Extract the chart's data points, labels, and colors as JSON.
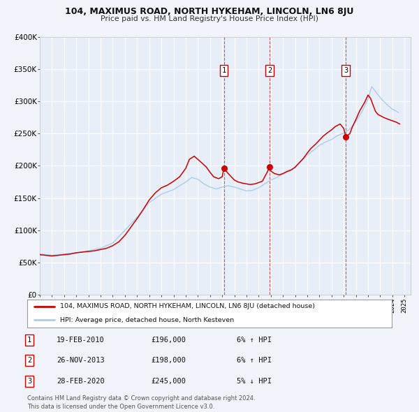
{
  "title": "104, MAXIMUS ROAD, NORTH HYKEHAM, LINCOLN, LN6 8JU",
  "subtitle": "Price paid vs. HM Land Registry's House Price Index (HPI)",
  "legend_label_red": "104, MAXIMUS ROAD, NORTH HYKEHAM, LINCOLN, LN6 8JU (detached house)",
  "legend_label_blue": "HPI: Average price, detached house, North Kesteven",
  "footer_line1": "Contains HM Land Registry data © Crown copyright and database right 2024.",
  "footer_line2": "This data is licensed under the Open Government Licence v3.0.",
  "background_color": "#f0f4fa",
  "plot_bg_color": "#e8eef8",
  "grid_color": "#ffffff",
  "red_color": "#cc0000",
  "blue_color": "#aaccee",
  "sale_years": [
    2010.136,
    2013.899,
    2020.161
  ],
  "sale_prices": [
    196000,
    198000,
    245000
  ],
  "sale_labels": [
    "1",
    "2",
    "3"
  ],
  "table_rows": [
    {
      "num": "1",
      "date": "19-FEB-2010",
      "price": "£196,000",
      "pct": "6% ↑ HPI"
    },
    {
      "num": "2",
      "date": "26-NOV-2013",
      "price": "£198,000",
      "pct": "6% ↑ HPI"
    },
    {
      "num": "3",
      "date": "28-FEB-2020",
      "price": "£245,000",
      "pct": "5% ↓ HPI"
    }
  ],
  "yticks": [
    0,
    50000,
    100000,
    150000,
    200000,
    250000,
    300000,
    350000,
    400000
  ],
  "ytick_labels": [
    "£0",
    "£50K",
    "£100K",
    "£150K",
    "£200K",
    "£250K",
    "£300K",
    "£350K",
    "£400K"
  ],
  "red_x": [
    1995.0,
    1996.0,
    1997.0,
    1997.5,
    1998.0,
    1998.5,
    1999.0,
    1999.5,
    2000.0,
    2000.5,
    2001.0,
    2001.5,
    2002.0,
    2002.5,
    2003.0,
    2003.5,
    2004.0,
    2004.5,
    2005.0,
    2005.5,
    2006.0,
    2006.5,
    2007.0,
    2007.3,
    2007.7,
    2008.0,
    2008.3,
    2008.7,
    2009.0,
    2009.3,
    2009.7,
    2010.0,
    2010.136,
    2010.5,
    2010.8,
    2011.0,
    2011.3,
    2011.7,
    2012.0,
    2012.3,
    2012.7,
    2013.0,
    2013.3,
    2013.7,
    2013.899,
    2014.0,
    2014.3,
    2014.7,
    2015.0,
    2015.3,
    2015.7,
    2016.0,
    2016.3,
    2016.7,
    2017.0,
    2017.3,
    2017.7,
    2018.0,
    2018.3,
    2018.7,
    2019.0,
    2019.3,
    2019.7,
    2020.0,
    2020.161,
    2020.5,
    2020.7,
    2021.0,
    2021.3,
    2021.7,
    2022.0,
    2022.2,
    2022.4,
    2022.6,
    2022.8,
    2023.0,
    2023.3,
    2023.7,
    2024.0,
    2024.3,
    2024.6
  ],
  "red_y": [
    62000,
    60000,
    62000,
    63000,
    65000,
    66000,
    67000,
    68000,
    70000,
    72000,
    76000,
    82000,
    92000,
    105000,
    118000,
    132000,
    147000,
    158000,
    166000,
    170000,
    176000,
    183000,
    196000,
    210000,
    215000,
    210000,
    205000,
    198000,
    190000,
    183000,
    180000,
    183000,
    196000,
    188000,
    182000,
    178000,
    175000,
    173000,
    172000,
    171000,
    172000,
    174000,
    176000,
    190000,
    198000,
    192000,
    188000,
    186000,
    188000,
    191000,
    194000,
    198000,
    204000,
    212000,
    220000,
    227000,
    234000,
    240000,
    246000,
    252000,
    256000,
    261000,
    265000,
    258000,
    245000,
    250000,
    260000,
    272000,
    285000,
    298000,
    310000,
    305000,
    295000,
    285000,
    280000,
    278000,
    275000,
    272000,
    270000,
    268000,
    265000
  ],
  "blue_x": [
    1995.0,
    1996.0,
    1997.0,
    1998.0,
    1999.0,
    2000.0,
    2001.0,
    2002.0,
    2003.0,
    2004.0,
    2005.0,
    2006.0,
    2007.0,
    2007.5,
    2008.0,
    2008.5,
    2009.0,
    2009.5,
    2010.0,
    2010.5,
    2011.0,
    2011.5,
    2012.0,
    2012.5,
    2013.0,
    2013.5,
    2014.0,
    2014.5,
    2015.0,
    2015.5,
    2016.0,
    2016.5,
    2017.0,
    2017.5,
    2018.0,
    2018.5,
    2019.0,
    2019.5,
    2020.0,
    2020.5,
    2021.0,
    2021.5,
    2022.0,
    2022.3,
    2022.6,
    2023.0,
    2023.5,
    2024.0,
    2024.5
  ],
  "blue_y": [
    63000,
    61000,
    63000,
    65000,
    68000,
    72000,
    80000,
    100000,
    120000,
    143000,
    156000,
    163000,
    175000,
    182000,
    179000,
    172000,
    167000,
    164000,
    167000,
    169000,
    167000,
    164000,
    161000,
    162000,
    166000,
    172000,
    178000,
    182000,
    187000,
    191000,
    197000,
    207000,
    217000,
    224000,
    232000,
    237000,
    241000,
    247000,
    251000,
    257000,
    269000,
    284000,
    304000,
    323000,
    316000,
    306000,
    296000,
    288000,
    283000
  ]
}
